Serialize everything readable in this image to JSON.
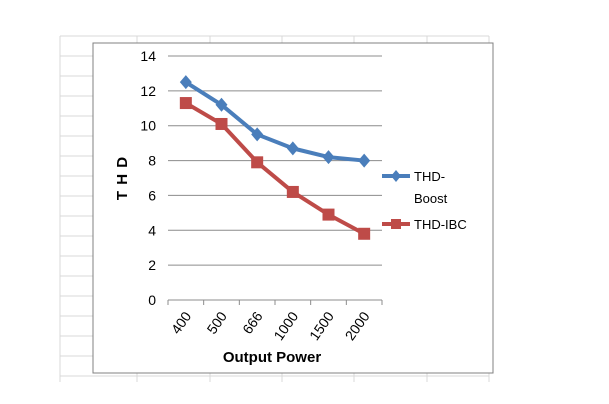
{
  "chart_data": {
    "type": "line",
    "categories": [
      "400",
      "500",
      "666",
      "1000",
      "1500",
      "2000"
    ],
    "series": [
      {
        "name": "THD-Boost",
        "legend_lines": [
          "THD-",
          "Boost"
        ],
        "values": [
          12.5,
          11.2,
          9.5,
          8.7,
          8.2,
          8.0
        ],
        "color": "#4a7ebb",
        "marker": "diamond"
      },
      {
        "name": "THD-IBC",
        "legend_lines": [
          "THD-IBC"
        ],
        "values": [
          11.3,
          10.1,
          7.9,
          6.2,
          4.9,
          3.8
        ],
        "color": "#be4b48",
        "marker": "square"
      }
    ],
    "xlabel": "Output Power",
    "ylabel": "T H D",
    "ylim": [
      0,
      14
    ],
    "yticks": [
      "0",
      "2",
      "4",
      "6",
      "8",
      "10",
      "12",
      "14"
    ],
    "grid": true,
    "legend_position": "right"
  },
  "colors": {
    "sheet_grid": "#d9d9d9",
    "plot_grid": "#8c8c8c",
    "border": "#808080"
  }
}
